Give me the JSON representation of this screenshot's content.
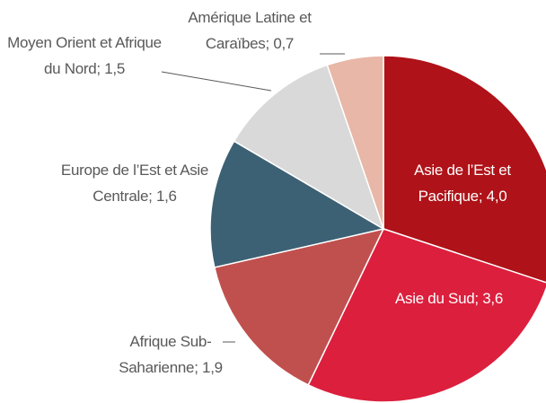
{
  "chart_data": {
    "type": "pie",
    "categories": [
      "Asie de l’Est et Pacifique",
      "Asie du Sud",
      "Afrique Sub-Saharienne",
      "Europe de l’Est et Asie Centrale",
      "Moyen Orient et Afrique du Nord",
      "Amérique Latine et Caraïbes"
    ],
    "values": [
      4.0,
      3.6,
      1.9,
      1.6,
      1.5,
      0.7
    ],
    "value_labels": [
      "4,0",
      "3,6",
      "1,9",
      "1,6",
      "1,5",
      "0,7"
    ],
    "label_separator": "; ",
    "colors": [
      "#af1218",
      "#dc1f3d",
      "#c0504e",
      "#3c6174",
      "#d9d9d9",
      "#e8b7a7"
    ]
  }
}
